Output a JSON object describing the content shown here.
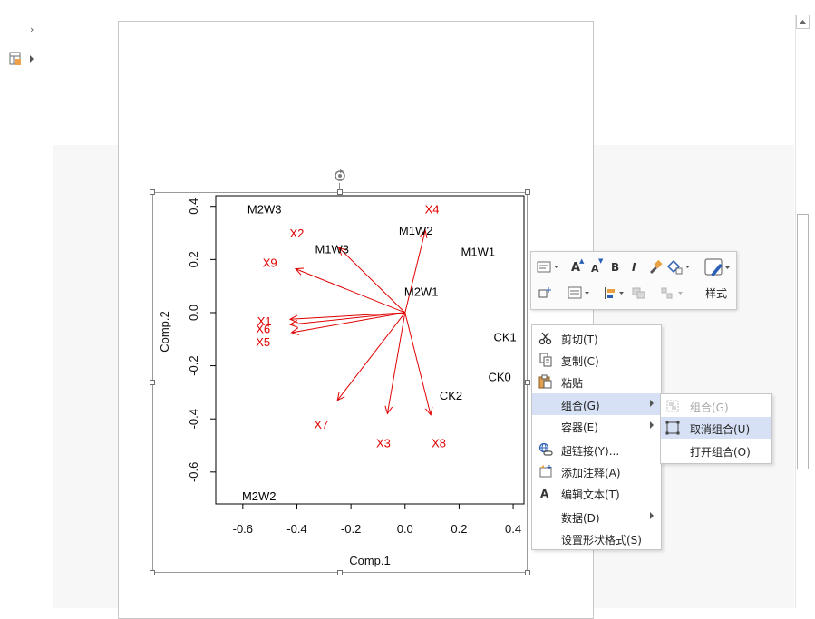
{
  "chart_data": {
    "type": "scatter",
    "xlabel": "Comp.1",
    "ylabel": "Comp.2",
    "xlim": [
      -0.7,
      0.44
    ],
    "ylim": [
      -0.72,
      0.44
    ],
    "x_ticks": [
      "-0.6",
      "-0.4",
      "-0.2",
      "0.0",
      "0.2",
      "0.4"
    ],
    "x_tick_values": [
      -0.6,
      -0.4,
      -0.2,
      0.0,
      0.2,
      0.4
    ],
    "y_ticks": [
      "-0.6",
      "-0.4",
      "-0.2",
      "0.0",
      "0.2",
      "0.4"
    ],
    "y_tick_values": [
      -0.6,
      -0.4,
      -0.2,
      0.0,
      0.2,
      0.4
    ],
    "points": [
      {
        "label": "M2W3",
        "x": -0.52,
        "y": 0.39
      },
      {
        "label": "M1W2",
        "x": 0.04,
        "y": 0.31
      },
      {
        "label": "M1W3",
        "x": -0.27,
        "y": 0.24
      },
      {
        "label": "M1W1",
        "x": 0.27,
        "y": 0.23
      },
      {
        "label": "M2W1",
        "x": 0.06,
        "y": 0.08
      },
      {
        "label": "CK1",
        "x": 0.37,
        "y": -0.09
      },
      {
        "label": "CK0",
        "x": 0.35,
        "y": -0.24
      },
      {
        "label": "CK2",
        "x": 0.17,
        "y": -0.31
      },
      {
        "label": "M2W2",
        "x": -0.54,
        "y": -0.69
      }
    ],
    "loadings": [
      {
        "label": "X4",
        "x": 0.075,
        "y": 0.31,
        "lx": 0.1,
        "ly": 0.39
      },
      {
        "label": "X2",
        "x": -0.245,
        "y": 0.245,
        "lx": -0.4,
        "ly": 0.3
      },
      {
        "label": "X9",
        "x": -0.405,
        "y": 0.165,
        "lx": -0.5,
        "ly": 0.19
      },
      {
        "label": "X1",
        "x": -0.425,
        "y": -0.025,
        "lx": -0.52,
        "ly": -0.03
      },
      {
        "label": "X6",
        "x": -0.425,
        "y": -0.045,
        "lx": -0.525,
        "ly": -0.06
      },
      {
        "label": "X5",
        "x": -0.42,
        "y": -0.075,
        "lx": -0.525,
        "ly": -0.11
      },
      {
        "label": "X7",
        "x": -0.25,
        "y": -0.33,
        "lx": -0.31,
        "ly": -0.42
      },
      {
        "label": "X3",
        "x": -0.065,
        "y": -0.38,
        "lx": -0.08,
        "ly": -0.49
      },
      {
        "label": "X8",
        "x": 0.095,
        "y": -0.385,
        "lx": 0.125,
        "ly": -0.49
      }
    ],
    "point_color": "#000000",
    "loading_color": "#e00000"
  },
  "toolbar": {
    "style_label": "样式",
    "font_bigger": "A",
    "font_smaller": "A",
    "bold": "B",
    "italic": "I"
  },
  "context_menu": {
    "items": [
      {
        "label": "剪切(T)",
        "icon": "scissors-icon"
      },
      {
        "label": "复制(C)",
        "icon": "copy-icon"
      },
      {
        "label": "粘贴",
        "icon": "paste-icon"
      },
      {
        "label": "组合(G)",
        "icon": "",
        "submenu": true
      },
      {
        "label": "容器(E)",
        "icon": "",
        "submenu": true
      },
      {
        "label": "超链接(Y)...",
        "icon": "hyperlink-icon"
      },
      {
        "label": "添加注释(A)",
        "icon": "comment-icon"
      },
      {
        "label": "编辑文本(T)",
        "icon": "edit-text-icon"
      },
      {
        "label": "数据(D)",
        "icon": "",
        "submenu": true
      },
      {
        "label": "设置形状格式(S)",
        "icon": ""
      }
    ]
  },
  "sub_menu": {
    "items": [
      {
        "label": "组合(G)",
        "icon": "group-icon",
        "disabled": true
      },
      {
        "label": "取消组合(U)",
        "icon": "ungroup-icon"
      },
      {
        "label": "打开组合(O)",
        "icon": ""
      }
    ]
  }
}
